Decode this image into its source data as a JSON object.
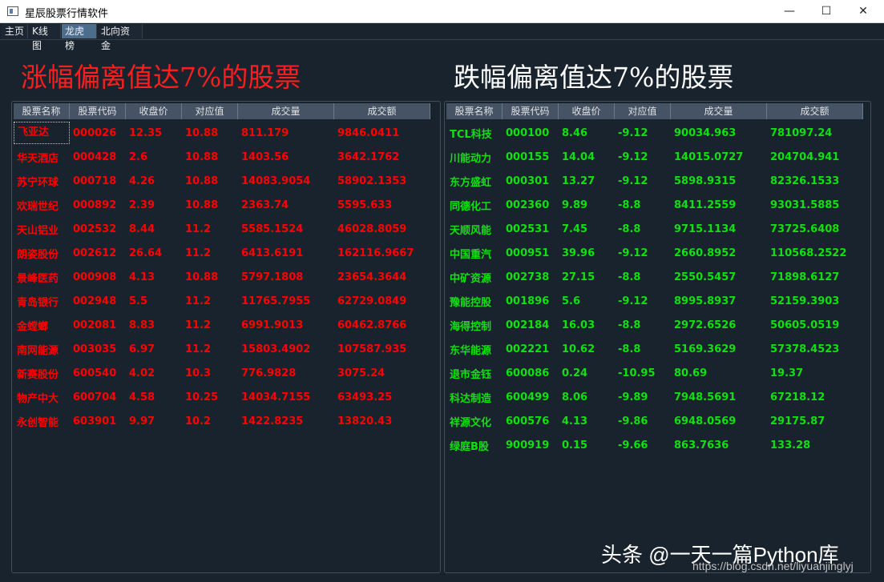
{
  "window": {
    "title": "星辰股票行情软件",
    "minimize": "—",
    "maximize": "☐",
    "close": "✕"
  },
  "tabs": [
    "主页",
    "K线图",
    "龙虎榜",
    "北向资金"
  ],
  "active_tab": "龙虎榜",
  "headings": {
    "up": "涨幅偏离值达7%的股票",
    "down": "跌幅偏离值达7%的股票"
  },
  "columns": [
    "股票名称",
    "股票代码",
    "收盘价",
    "对应值",
    "成交量",
    "成交额"
  ],
  "up_rows": [
    [
      "飞亚达",
      "000026",
      "12.35",
      "10.88",
      "811.179",
      "9846.0411"
    ],
    [
      "华天酒店",
      "000428",
      "2.6",
      "10.88",
      "1403.56",
      "3642.1762"
    ],
    [
      "苏宁环球",
      "000718",
      "4.26",
      "10.88",
      "14083.9054",
      "58902.1353"
    ],
    [
      "欢瑞世纪",
      "000892",
      "2.39",
      "10.88",
      "2363.74",
      "5595.633"
    ],
    [
      "天山铝业",
      "002532",
      "8.44",
      "11.2",
      "5585.1524",
      "46028.8059"
    ],
    [
      "朗姿股份",
      "002612",
      "26.64",
      "11.2",
      "6413.6191",
      "162116.9667"
    ],
    [
      "景峰医药",
      "000908",
      "4.13",
      "10.88",
      "5797.1808",
      "23654.3644"
    ],
    [
      "青岛银行",
      "002948",
      "5.5",
      "11.2",
      "11765.7955",
      "62729.0849"
    ],
    [
      "金螳螂",
      "002081",
      "8.83",
      "11.2",
      "6991.9013",
      "60462.8766"
    ],
    [
      "南网能源",
      "003035",
      "6.97",
      "11.2",
      "15803.4902",
      "107587.935"
    ],
    [
      "新赛股份",
      "600540",
      "4.02",
      "10.3",
      "776.9828",
      "3075.24"
    ],
    [
      "物产中大",
      "600704",
      "4.58",
      "10.25",
      "14034.7155",
      "63493.25"
    ],
    [
      "永创智能",
      "603901",
      "9.97",
      "10.2",
      "1422.8235",
      "13820.43"
    ]
  ],
  "down_rows": [
    [
      "TCL科技",
      "000100",
      "8.46",
      "-9.12",
      "90034.963",
      "781097.24"
    ],
    [
      "川能动力",
      "000155",
      "14.04",
      "-9.12",
      "14015.0727",
      "204704.941"
    ],
    [
      "东方盛虹",
      "000301",
      "13.27",
      "-9.12",
      "5898.9315",
      "82326.1533"
    ],
    [
      "同德化工",
      "002360",
      "9.89",
      "-8.8",
      "8411.2559",
      "93031.5885"
    ],
    [
      "天顺风能",
      "002531",
      "7.45",
      "-8.8",
      "9715.1134",
      "73725.6408"
    ],
    [
      "中国重汽",
      "000951",
      "39.96",
      "-9.12",
      "2660.8952",
      "110568.2522"
    ],
    [
      "中矿资源",
      "002738",
      "27.15",
      "-8.8",
      "2550.5457",
      "71898.6127"
    ],
    [
      "豫能控股",
      "001896",
      "5.6",
      "-9.12",
      "8995.8937",
      "52159.3903"
    ],
    [
      "海得控制",
      "002184",
      "16.03",
      "-8.8",
      "2972.6526",
      "50605.0519"
    ],
    [
      "东华能源",
      "002221",
      "10.62",
      "-8.8",
      "5169.3629",
      "57378.4523"
    ],
    [
      "退市金钰",
      "600086",
      "0.24",
      "-10.95",
      "80.69",
      "19.37"
    ],
    [
      "科达制造",
      "600499",
      "8.06",
      "-9.89",
      "7948.5691",
      "67218.12"
    ],
    [
      "祥源文化",
      "600576",
      "4.13",
      "-9.86",
      "6948.0569",
      "29175.87"
    ],
    [
      "绿庭B股",
      "900919",
      "0.15",
      "-9.66",
      "863.7636",
      "133.28"
    ]
  ],
  "watermark": "头条 @一天一篇Python库",
  "watermark_url": "https://blog.csdn.net/liyuanjinglyj",
  "colors": {
    "up": "#ff0000",
    "down": "#10e010",
    "background": "#19232d"
  }
}
